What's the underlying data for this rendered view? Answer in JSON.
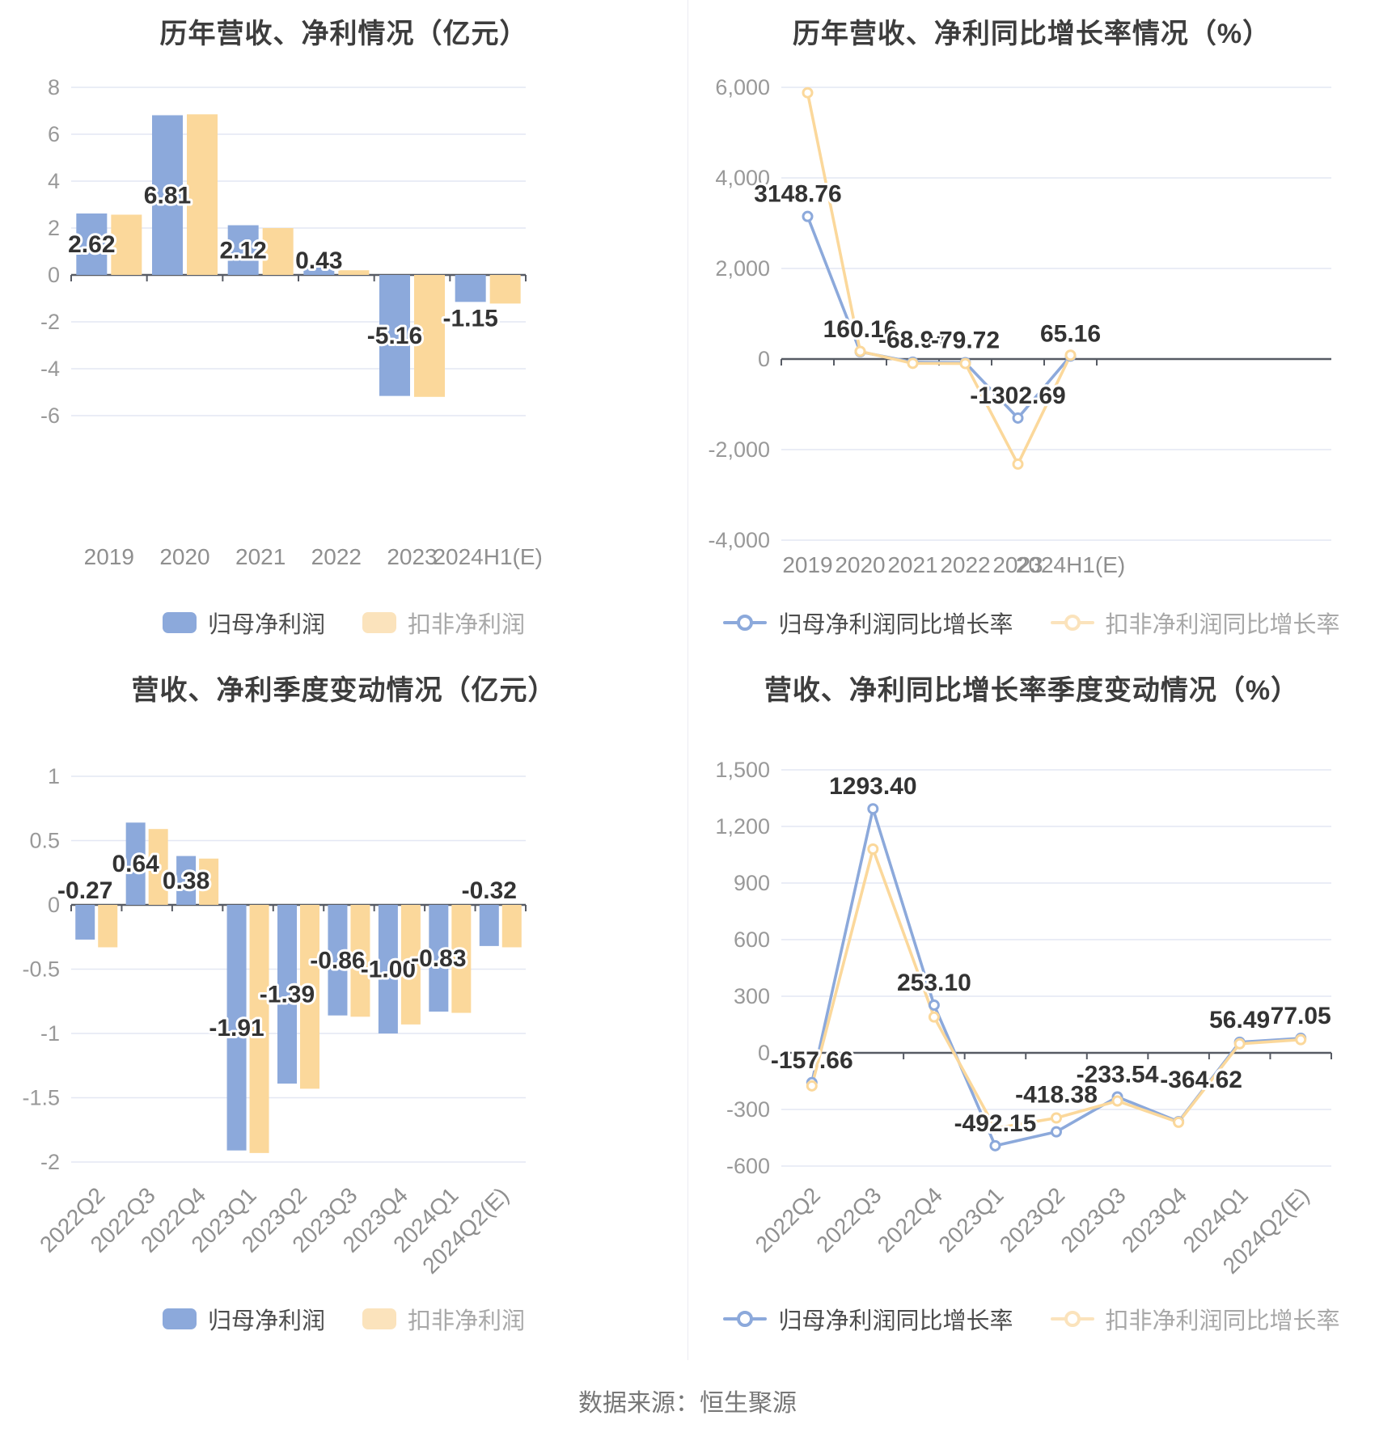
{
  "page": {
    "footer": "数据来源：恒生聚源",
    "background": "#ffffff"
  },
  "colors": {
    "blue": "#8CA9DB",
    "yellow": "#FBD89B",
    "legend_blue": "#8CA9DB",
    "legend_yellow": "#FBE3BC",
    "grid": "#E3E7F3",
    "axis": "#575B64",
    "tick_text": "#999999",
    "cat_text": "#8F8F8F",
    "label_text": "#333333",
    "title_text": "#3D3D3D",
    "footer_text": "#777777"
  },
  "chart_data": [
    {
      "id": "yearly-amount",
      "type": "bar",
      "title": "历年营收、净利情况（亿元）",
      "categories": [
        "2019",
        "2020",
        "2021",
        "2022",
        "2023",
        "2024H1(E)"
      ],
      "series": [
        {
          "name": "归母净利润",
          "values": [
            2.62,
            6.81,
            2.12,
            0.43,
            -5.16,
            -1.15
          ]
        },
        {
          "name": "扣非净利润",
          "values": [
            2.57,
            6.85,
            2.0,
            0.2,
            -5.2,
            -1.22
          ]
        }
      ],
      "labels": [
        "2.62",
        "6.81",
        "2.12",
        "0.43",
        "-5.16",
        "-1.15"
      ],
      "ylim": [
        -6,
        8
      ],
      "yticks": [
        8,
        6,
        4,
        2,
        0,
        -2,
        -4,
        -6
      ],
      "grid": true,
      "legend_position": "bottom",
      "legend": [
        "归母净利润",
        "扣非净利润"
      ]
    },
    {
      "id": "yearly-growth",
      "type": "line",
      "title": "历年营收、净利同比增长率情况（%）",
      "categories": [
        "2019",
        "2020",
        "2021",
        "2022",
        "2023",
        "2024H1(E)"
      ],
      "series": [
        {
          "name": "归母净利润同比增长率",
          "values": [
            3148.76,
            160.16,
            -68.94,
            -79.72,
            -1302.69,
            65.16
          ]
        },
        {
          "name": "扣非净利润同比增长率",
          "values": [
            5880,
            170,
            -95,
            -100,
            -2320,
            85
          ]
        }
      ],
      "labels": [
        "3148.76",
        "160.16",
        "-68.94",
        "-79.72",
        "-1302.69",
        "65.16"
      ],
      "ylim": [
        -4000,
        6000
      ],
      "yticks": [
        6000,
        4000,
        2000,
        0,
        -2000,
        -4000
      ],
      "grid": true,
      "legend_position": "bottom",
      "legend": [
        "归母净利润同比增长率",
        "扣非净利润同比增长率"
      ]
    },
    {
      "id": "quarterly-amount",
      "type": "bar",
      "title": "营收、净利季度变动情况（亿元）",
      "categories": [
        "2022Q2",
        "2022Q3",
        "2022Q4",
        "2023Q1",
        "2023Q2",
        "2023Q3",
        "2023Q4",
        "2024Q1",
        "2024Q2(E)"
      ],
      "series": [
        {
          "name": "归母净利润",
          "values": [
            -0.27,
            0.64,
            0.38,
            -1.91,
            -1.39,
            -0.86,
            -1.0,
            -0.83,
            -0.32
          ]
        },
        {
          "name": "扣非净利润",
          "values": [
            -0.33,
            0.59,
            0.36,
            -1.93,
            -1.43,
            -0.87,
            -0.93,
            -0.84,
            -0.33
          ]
        }
      ],
      "labels": [
        "-0.27",
        "0.64",
        "0.38",
        "-1.91",
        "-1.39",
        "-0.86",
        "-1.00",
        "-0.83",
        "-0.32"
      ],
      "ylim": [
        -2,
        1
      ],
      "yticks": [
        1,
        0.5,
        0,
        -0.5,
        -1,
        -1.5,
        -2
      ],
      "grid": true,
      "legend_position": "bottom",
      "legend": [
        "归母净利润",
        "扣非净利润"
      ]
    },
    {
      "id": "quarterly-growth",
      "type": "line",
      "title": "营收、净利同比增长率季度变动情况（%）",
      "categories": [
        "2022Q2",
        "2022Q3",
        "2022Q4",
        "2023Q1",
        "2023Q2",
        "2023Q3",
        "2023Q4",
        "2024Q1",
        "2024Q2(E)"
      ],
      "series": [
        {
          "name": "归母净利润同比增长率",
          "values": [
            -157.66,
            1293.4,
            253.1,
            -492.15,
            -418.38,
            -233.54,
            -364.62,
            56.49,
            77.05
          ]
        },
        {
          "name": "扣非净利润同比增长率",
          "values": [
            -175,
            1080,
            190,
            -400,
            -345,
            -255,
            -368,
            48,
            70
          ]
        }
      ],
      "labels": [
        "-157.66",
        "1293.40",
        "253.10",
        "-492.15",
        "-418.38",
        "-233.54",
        "-364.62",
        "56.49",
        "77.05"
      ],
      "ylim": [
        -600,
        1500
      ],
      "yticks": [
        1500,
        1200,
        900,
        600,
        300,
        0,
        -300,
        -600
      ],
      "grid": true,
      "legend_position": "bottom",
      "legend": [
        "归母净利润同比增长率",
        "扣非净利润同比增长率"
      ]
    }
  ]
}
